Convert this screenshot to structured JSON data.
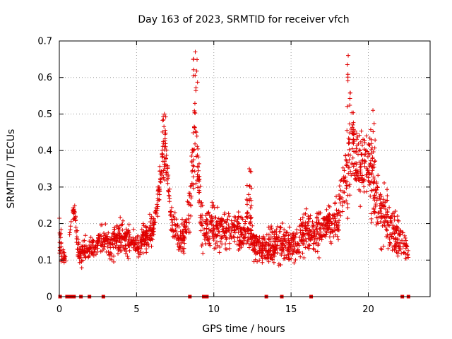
{
  "chart_data": {
    "type": "scatter",
    "title": "Day 163 of 2023, SRMTID for receiver vfch",
    "xlabel": "GPS time / hours",
    "ylabel": "SRMTID / TECUs",
    "xlim": [
      0,
      24
    ],
    "ylim": [
      0,
      0.7
    ],
    "x_ticks": [
      0,
      5,
      10,
      15,
      20
    ],
    "x_tick_labels": [
      "0",
      "5",
      "10",
      "15",
      "20"
    ],
    "y_ticks": [
      0,
      0.1,
      0.2,
      0.3,
      0.4,
      0.5,
      0.6,
      0.7
    ],
    "y_tick_labels": [
      "0",
      "0.1",
      "0.2",
      "0.3",
      "0.4",
      "0.5",
      "0.6",
      "0.7"
    ],
    "grid": true,
    "marker": "plus",
    "color": "#e00000",
    "series": [
      {
        "name": "SRMTID",
        "envelope": {
          "hours": [
            0.0,
            0.3,
            0.5,
            0.8,
            1.0,
            1.2,
            1.4,
            1.6,
            1.9,
            2.2,
            2.5,
            2.8,
            3.1,
            3.4,
            3.7,
            4.0,
            4.3,
            4.6,
            4.9,
            5.2,
            5.5,
            5.8,
            6.0,
            6.2,
            6.4,
            6.6,
            6.8,
            7.0,
            7.2,
            7.5,
            7.8,
            8.1,
            8.4,
            8.6,
            8.8,
            9.0,
            9.2,
            9.5,
            9.8,
            10.1,
            10.5,
            11.0,
            11.5,
            12.0,
            12.3,
            12.6,
            13.0,
            13.5,
            14.0,
            14.5,
            15.0,
            15.5,
            16.0,
            16.5,
            17.0,
            17.5,
            18.0,
            18.3,
            18.6,
            18.8,
            19.0,
            19.3,
            19.6,
            19.9,
            20.2,
            20.5,
            20.8,
            21.1,
            21.4,
            21.7,
            22.0,
            22.3,
            22.6
          ],
          "low": [
            0.08,
            0.07,
            0.1,
            0.2,
            0.2,
            0.08,
            0.06,
            0.08,
            0.08,
            0.1,
            0.1,
            0.1,
            0.09,
            0.08,
            0.09,
            0.09,
            0.08,
            0.1,
            0.09,
            0.09,
            0.1,
            0.1,
            0.12,
            0.15,
            0.2,
            0.25,
            0.3,
            0.25,
            0.15,
            0.12,
            0.1,
            0.1,
            0.12,
            0.2,
            0.28,
            0.2,
            0.1,
            0.08,
            0.1,
            0.1,
            0.1,
            0.1,
            0.1,
            0.1,
            0.12,
            0.07,
            0.07,
            0.07,
            0.06,
            0.08,
            0.06,
            0.08,
            0.09,
            0.1,
            0.1,
            0.12,
            0.12,
            0.15,
            0.2,
            0.22,
            0.25,
            0.2,
            0.2,
            0.25,
            0.2,
            0.15,
            0.12,
            0.1,
            0.08,
            0.07,
            0.08,
            0.08,
            0.08
          ],
          "high": [
            0.24,
            0.15,
            0.12,
            0.24,
            0.27,
            0.17,
            0.17,
            0.18,
            0.17,
            0.18,
            0.2,
            0.22,
            0.22,
            0.2,
            0.23,
            0.25,
            0.22,
            0.2,
            0.2,
            0.2,
            0.22,
            0.24,
            0.25,
            0.28,
            0.34,
            0.42,
            0.5,
            0.48,
            0.3,
            0.26,
            0.22,
            0.24,
            0.36,
            0.5,
            0.67,
            0.48,
            0.3,
            0.28,
            0.3,
            0.26,
            0.26,
            0.26,
            0.25,
            0.25,
            0.35,
            0.2,
            0.21,
            0.2,
            0.22,
            0.22,
            0.22,
            0.22,
            0.28,
            0.24,
            0.27,
            0.28,
            0.3,
            0.38,
            0.55,
            0.66,
            0.6,
            0.5,
            0.48,
            0.5,
            0.5,
            0.38,
            0.32,
            0.38,
            0.3,
            0.27,
            0.24,
            0.2,
            0.15
          ]
        },
        "spikes": [
          {
            "x": 6.8,
            "y": 0.5
          },
          {
            "x": 8.8,
            "y": 0.67
          },
          {
            "x": 18.7,
            "y": 0.66
          },
          {
            "x": 12.3,
            "y": 0.35
          },
          {
            "x": 20.3,
            "y": 0.51
          }
        ],
        "point_density_per_hour": 90,
        "zero_markers_x": [
          0.05,
          0.5,
          0.6,
          0.7,
          0.8,
          0.95,
          1.4,
          1.95,
          2.85,
          8.45,
          9.35,
          9.45,
          9.55,
          13.4,
          14.4,
          16.3,
          22.2,
          22.6
        ]
      }
    ]
  }
}
